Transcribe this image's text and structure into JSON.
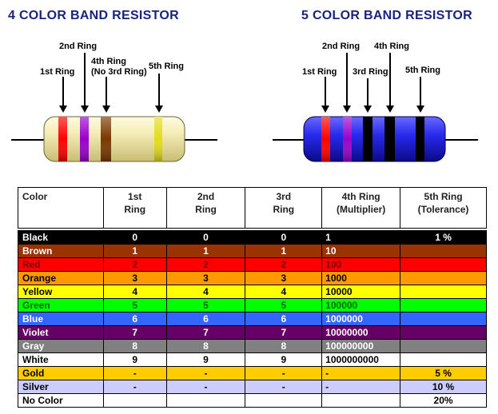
{
  "titles": {
    "four_band": "4 COLOR BAND RESISTOR",
    "five_band": "5 COLOR BAND RESISTOR"
  },
  "four_band_labels": {
    "ring2": "2nd Ring",
    "ring1": "1st Ring",
    "ring4_line1": "4th Ring",
    "ring4_line2": "(No 3rd Ring)",
    "ring5": "5th Ring"
  },
  "five_band_labels": {
    "ring2": "2nd Ring",
    "ring4": "4th Ring",
    "ring1": "1st Ring",
    "ring3": "3rd Ring",
    "ring5": "5th Ring"
  },
  "table": {
    "headers": [
      [
        "Color",
        ""
      ],
      [
        "1st",
        "Ring"
      ],
      [
        "2nd",
        "Ring"
      ],
      [
        "3rd",
        "Ring"
      ],
      [
        "4th Ring",
        "(Multiplier)"
      ],
      [
        "5th Ring",
        "(Tolerance)"
      ]
    ],
    "rows": [
      {
        "name": "Black",
        "d1": "0",
        "d2": "0",
        "d3": "0",
        "mult": "1",
        "tol": "1 %",
        "bg": "#000000",
        "fg": "#ffffff"
      },
      {
        "name": "Brown",
        "d1": "1",
        "d2": "1",
        "d3": "1",
        "mult": "10",
        "tol": "",
        "bg": "#993300",
        "fg": "#ffffff"
      },
      {
        "name": "Red",
        "d1": "2",
        "d2": "2",
        "d3": "2",
        "mult": "100",
        "tol": "",
        "bg": "#ff0000",
        "fg": "#7a0000"
      },
      {
        "name": "Orange",
        "d1": "3",
        "d2": "3",
        "d3": "3",
        "mult": "1000",
        "tol": "",
        "bg": "#ff9900",
        "fg": "#000000"
      },
      {
        "name": "Yellow",
        "d1": "4",
        "d2": "4",
        "d3": "4",
        "mult": "10000",
        "tol": "",
        "bg": "#ffff00",
        "fg": "#000000"
      },
      {
        "name": "Green",
        "d1": "5",
        "d2": "5",
        "d3": "5",
        "mult": "100000",
        "tol": "",
        "bg": "#00ff00",
        "fg": "#006600"
      },
      {
        "name": "Blue",
        "d1": "6",
        "d2": "6",
        "d3": "6",
        "mult": "1000000",
        "tol": "",
        "bg": "#3366ff",
        "fg": "#ffffff"
      },
      {
        "name": "Violet",
        "d1": "7",
        "d2": "7",
        "d3": "7",
        "mult": "10000000",
        "tol": "",
        "bg": "#660066",
        "fg": "#ffffff"
      },
      {
        "name": "Gray",
        "d1": "8",
        "d2": "8",
        "d3": "8",
        "mult": "100000000",
        "tol": "",
        "bg": "#808080",
        "fg": "#ffffff"
      },
      {
        "name": "White",
        "d1": "9",
        "d2": "9",
        "d3": "9",
        "mult": "1000000000",
        "tol": "",
        "bg": "#ffffff",
        "fg": "#000000"
      },
      {
        "name": "Gold",
        "d1": "-",
        "d2": "-",
        "d3": "-",
        "mult": "-",
        "tol": "5 %",
        "bg": "#ffcc00",
        "fg": "#000000"
      },
      {
        "name": "Silver",
        "d1": "-",
        "d2": "-",
        "d3": "-",
        "mult": "-",
        "tol": "10 %",
        "bg": "#ccccff",
        "fg": "#000000"
      },
      {
        "name": "No Color",
        "d1": "",
        "d2": "",
        "d3": "",
        "mult": "",
        "tol": "20%",
        "bg": "#ffffff",
        "fg": "#000000"
      }
    ]
  }
}
